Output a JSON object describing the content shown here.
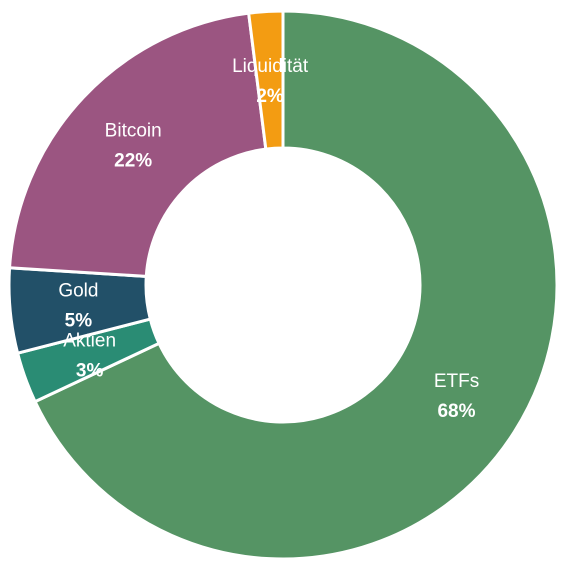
{
  "chart_data": {
    "type": "donut",
    "categories": [
      "ETFs",
      "Aktien",
      "Gold",
      "Bitcoin",
      "Liquidität"
    ],
    "values": [
      68,
      3,
      5,
      22,
      2
    ],
    "value_labels": [
      "68%",
      "3%",
      "5%",
      "22%",
      "2%"
    ],
    "colors": [
      "#559464",
      "#2a8c74",
      "#225068",
      "#9b5581",
      "#f39c12"
    ],
    "unit": "%",
    "start_angle": "12 o'clock",
    "direction": "clockwise",
    "legend": "none",
    "data_labels": "inside slices, name above percentage"
  }
}
